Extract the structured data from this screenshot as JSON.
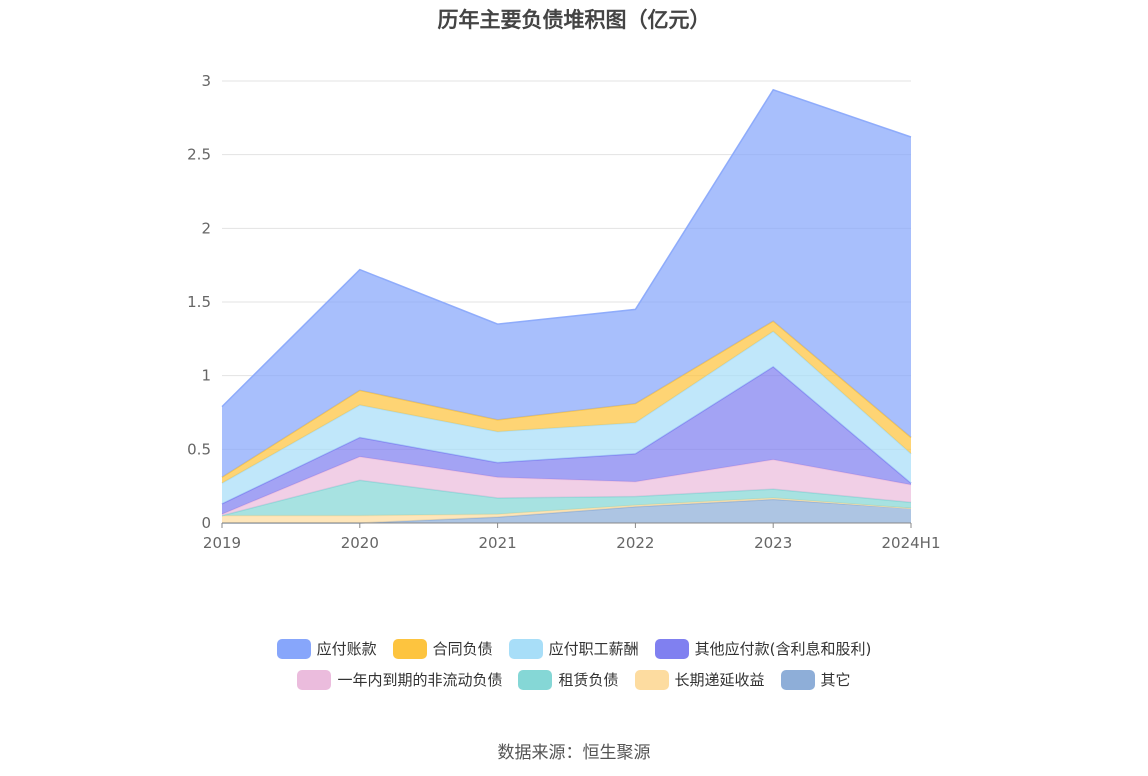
{
  "title": "历年主要负债堆积图（亿元）",
  "source": "数据来源：恒生聚源",
  "chart_data": {
    "type": "area",
    "stacked": true,
    "categories": [
      "2019",
      "2020",
      "2021",
      "2022",
      "2023",
      "2024H1"
    ],
    "ylim": [
      0,
      3
    ],
    "yticks": [
      "0",
      "0.5",
      "1",
      "1.5",
      "2",
      "2.5",
      "3"
    ],
    "grid": true,
    "legend_position": "bottom",
    "series": [
      {
        "name": "其它",
        "color": "#8eaed8",
        "values": [
          0.0,
          0.0,
          0.04,
          0.11,
          0.16,
          0.1
        ]
      },
      {
        "name": "长期递延收益",
        "color": "#fddca0",
        "values": [
          0.05,
          0.05,
          0.02,
          0.01,
          0.01,
          0.0
        ]
      },
      {
        "name": "租赁负债",
        "color": "#85d7d6",
        "values": [
          0.0,
          0.24,
          0.11,
          0.06,
          0.06,
          0.04
        ]
      },
      {
        "name": "一年内到期的非流动负债",
        "color": "#ebbcdd",
        "values": [
          0.01,
          0.16,
          0.14,
          0.1,
          0.2,
          0.12
        ]
      },
      {
        "name": "其他应付款(含利息和股利)",
        "color": "#8080f0",
        "values": [
          0.07,
          0.13,
          0.1,
          0.19,
          0.63,
          0.01
        ]
      },
      {
        "name": "应付职工薪酬",
        "color": "#a8def8",
        "values": [
          0.14,
          0.22,
          0.21,
          0.21,
          0.24,
          0.2
        ]
      },
      {
        "name": "合同负债",
        "color": "#fdc43f",
        "values": [
          0.04,
          0.1,
          0.08,
          0.13,
          0.07,
          0.11
        ]
      },
      {
        "name": "应付账款",
        "color": "#87a6fb",
        "values": [
          0.48,
          0.82,
          0.65,
          0.64,
          1.57,
          2.04
        ]
      }
    ],
    "legend_order": [
      [
        "应付账款",
        "合同负债",
        "应付职工薪酬",
        "其他应付款(含利息和股利)"
      ],
      [
        "一年内到期的非流动负债",
        "租赁负债",
        "长期递延收益",
        "其它"
      ]
    ]
  }
}
